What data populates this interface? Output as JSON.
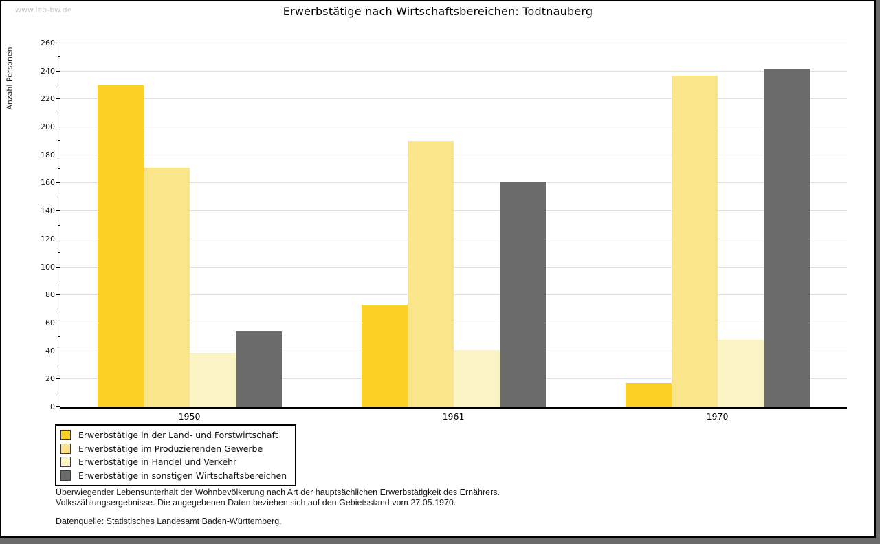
{
  "watermark": "www.leo-bw.de",
  "chart_data": {
    "type": "bar",
    "title": "Erwerbstätige nach Wirtschaftsbereichen: Todtnauberg",
    "ylabel": "Anzahl Personen",
    "xlabel": "",
    "categories": [
      "1950",
      "1961",
      "1970"
    ],
    "series": [
      {
        "name": "Erwerbstätige in der Land- und Forstwirtschaft",
        "color": "#fbd128",
        "values": [
          230,
          73,
          17
        ]
      },
      {
        "name": "Erwerbstätige im Produzierenden Gewerbe",
        "color": "#fbe58a",
        "values": [
          171,
          190,
          237
        ]
      },
      {
        "name": "Erwerbstätige in Handel und Verkehr",
        "color": "#fcf3c4",
        "values": [
          39,
          41,
          48
        ]
      },
      {
        "name": "Erwerbstätige in sonstigen Wirtschaftsbereichen",
        "color": "#6b6b6b",
        "values": [
          54,
          161,
          242
        ]
      }
    ],
    "ylim": [
      0,
      260
    ],
    "ytick_step": 20,
    "minor_tick_step": 10,
    "grid": true,
    "legend_position": "bottom-left"
  },
  "notes": {
    "line1": "Überwiegender Lebensunterhalt der Wohnbevölkerung nach Art der hauptsächlichen Erwerbstätigkeit des Ernährers.",
    "line2": "Volkszählungsergebnisse. Die angegebenen Daten beziehen sich auf den Gebietsstand vom 27.05.1970.",
    "source": "Datenquelle: Statistisches Landesamt Baden-Württemberg."
  },
  "colors": {
    "axis": "#000000",
    "gridline": "#dfdfdf",
    "watermark": "#c9c9c9",
    "frame_shadow": "#6b6b6b"
  }
}
